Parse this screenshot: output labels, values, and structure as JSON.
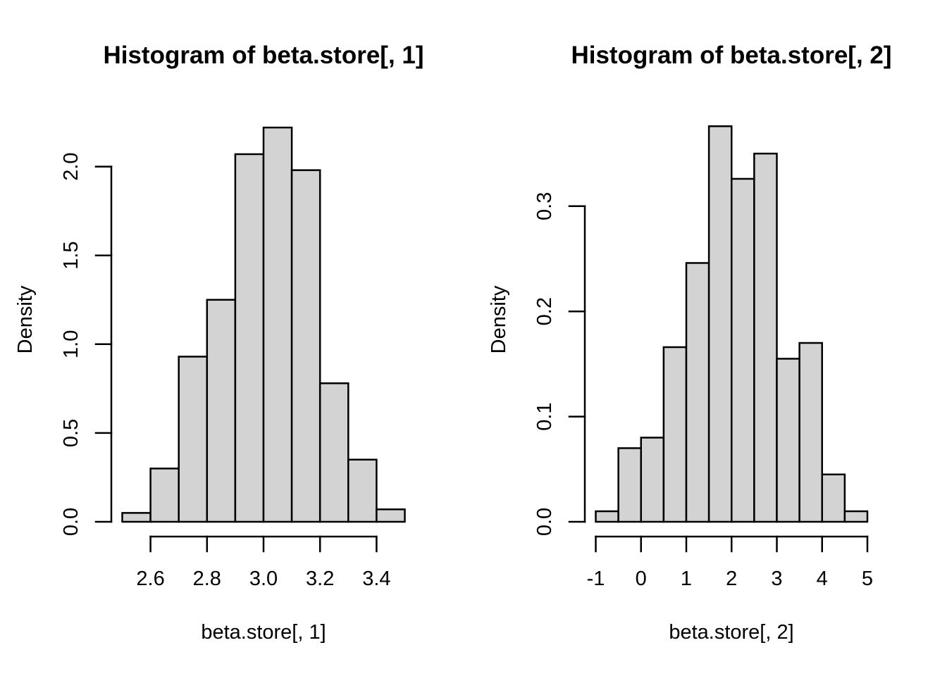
{
  "figure": {
    "background": "#FFFFFF",
    "bar_fill": "#D3D3D3",
    "bar_stroke": "#000000",
    "axis_color": "#000000",
    "text_color": "#000000"
  },
  "chart_data": [
    {
      "type": "bar",
      "subtype": "histogram",
      "title": "Histogram of beta.store[, 1]",
      "xlabel": "beta.store[, 1]",
      "ylabel": "Density",
      "breaks": [
        2.5,
        2.6,
        2.7,
        2.8,
        2.9,
        3.0,
        3.1,
        3.2,
        3.3,
        3.4,
        3.5
      ],
      "densities": [
        0.05,
        0.3,
        0.93,
        1.25,
        2.07,
        2.22,
        1.98,
        0.78,
        0.35,
        0.07
      ],
      "x_ticks": [
        2.6,
        2.8,
        3.0,
        3.2,
        3.4
      ],
      "x_tick_labels": [
        "2.6",
        "2.8",
        "3.0",
        "3.2",
        "3.4"
      ],
      "y_ticks": [
        0.0,
        0.5,
        1.0,
        1.5,
        2.0
      ],
      "y_tick_labels": [
        "0.0",
        "0.5",
        "1.0",
        "1.5",
        "2.0"
      ],
      "xlim": [
        2.5,
        3.5
      ],
      "ylim": [
        0,
        2.22
      ],
      "grid": false,
      "legend": null
    },
    {
      "type": "bar",
      "subtype": "histogram",
      "title": "Histogram of beta.store[, 2]",
      "xlabel": "beta.store[, 2]",
      "ylabel": "Density",
      "breaks": [
        -1.0,
        -0.5,
        0.0,
        0.5,
        1.0,
        1.5,
        2.0,
        2.5,
        3.0,
        3.5,
        4.0,
        4.5,
        5.0
      ],
      "densities": [
        0.01,
        0.07,
        0.08,
        0.166,
        0.246,
        0.376,
        0.326,
        0.35,
        0.155,
        0.17,
        0.045,
        0.01
      ],
      "x_ticks": [
        -1,
        0,
        1,
        2,
        3,
        4,
        5
      ],
      "x_tick_labels": [
        "-1",
        "0",
        "1",
        "2",
        "3",
        "4",
        "5"
      ],
      "y_ticks": [
        0.0,
        0.1,
        0.2,
        0.3
      ],
      "y_tick_labels": [
        "0.0",
        "0.1",
        "0.2",
        "0.3"
      ],
      "xlim": [
        -1,
        5
      ],
      "ylim": [
        0,
        0.376
      ],
      "grid": false,
      "legend": null
    }
  ]
}
